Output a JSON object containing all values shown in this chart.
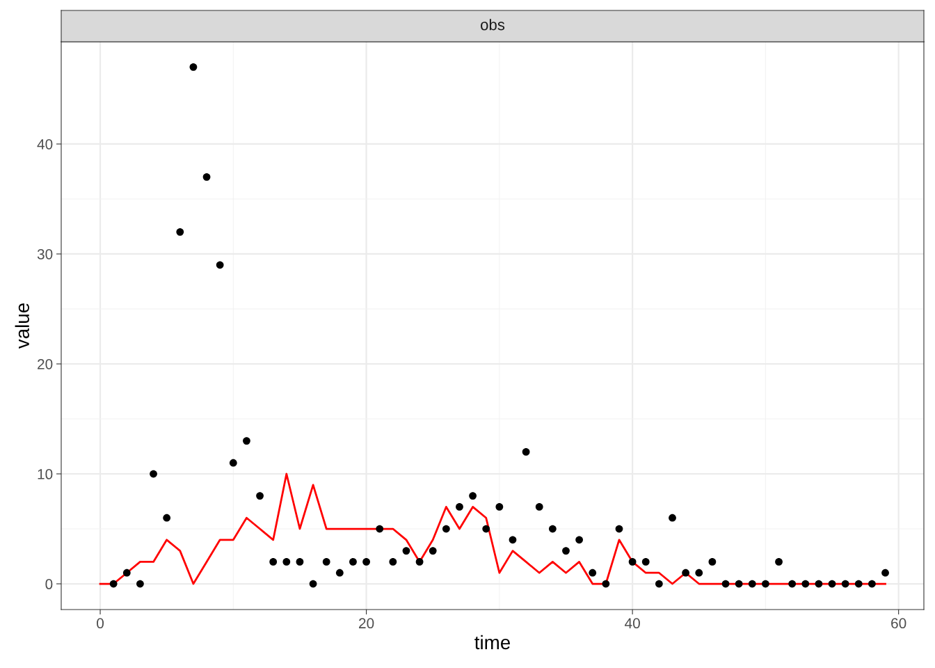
{
  "chart_data": {
    "type": "scatter",
    "title": "obs",
    "xlabel": "time",
    "ylabel": "value",
    "xlim": [
      -2.93,
      61.9
    ],
    "ylim": [
      -2.34,
      49.3
    ],
    "xticks": [
      0,
      20,
      40,
      60
    ],
    "yticks": [
      0,
      10,
      20,
      30,
      40
    ],
    "grid": true,
    "series": [
      {
        "color": "#000000",
        "marker": "circle",
        "x": [
          1,
          2,
          3,
          4,
          5,
          6,
          7,
          8,
          9,
          10,
          11,
          12,
          13,
          14,
          15,
          16,
          17,
          18,
          19,
          20,
          21,
          22,
          23,
          24,
          25,
          26,
          27,
          28,
          29,
          30,
          31,
          32,
          33,
          34,
          35,
          36,
          37,
          38,
          39,
          40,
          41,
          42,
          43,
          44,
          45,
          46,
          47,
          48,
          49,
          50,
          51,
          52,
          53,
          54,
          55,
          56,
          57,
          58,
          59
        ],
        "values": [
          0,
          1,
          0,
          10,
          6,
          32,
          47,
          37,
          29,
          11,
          13,
          8,
          2,
          2,
          2,
          0,
          2,
          1,
          2,
          2,
          5,
          2,
          3,
          2,
          3,
          5,
          7,
          8,
          5,
          7,
          4,
          12,
          7,
          5,
          3,
          4,
          1,
          0,
          5,
          2,
          2,
          0,
          6,
          1,
          1,
          2,
          0,
          0,
          0,
          0,
          2,
          0,
          0,
          0,
          0,
          0,
          0,
          0,
          1
        ]
      },
      {
        "type": "line",
        "color": "#ff0000",
        "x": [
          0,
          1,
          2,
          3,
          4,
          5,
          6,
          7,
          8,
          9,
          10,
          11,
          12,
          13,
          14,
          15,
          16,
          17,
          18,
          19,
          20,
          21,
          22,
          23,
          24,
          25,
          26,
          27,
          28,
          29,
          30,
          31,
          32,
          33,
          34,
          35,
          36,
          37,
          38,
          39,
          40,
          41,
          42,
          43,
          44,
          45,
          46,
          47,
          48,
          49,
          50,
          51,
          52,
          53,
          54,
          55,
          56,
          57,
          58,
          59
        ],
        "values": [
          0,
          0,
          1,
          2,
          2,
          4,
          3,
          0,
          2,
          4,
          4,
          6,
          5,
          4,
          10,
          5,
          9,
          5,
          5,
          5,
          5,
          5,
          5,
          4,
          2,
          4,
          7,
          5,
          7,
          6,
          1,
          3,
          2,
          1,
          2,
          1,
          2,
          0,
          0,
          4,
          2,
          1,
          1,
          0,
          1,
          0,
          0,
          0,
          0,
          0,
          0,
          0,
          0,
          0,
          0,
          0,
          0,
          0,
          0,
          0
        ]
      }
    ]
  }
}
